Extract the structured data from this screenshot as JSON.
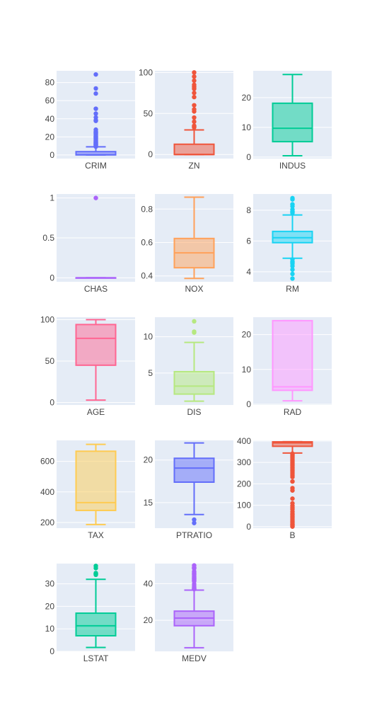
{
  "chart_data": {
    "type": "box",
    "layout": "grid 5 rows x 3 columns",
    "grid_lines": true,
    "legend": "none",
    "subplots": [
      {
        "name": "CRIM",
        "color": "#636EFA",
        "ylim": [
          -4,
          93
        ],
        "ticks": [
          0,
          20,
          40,
          60,
          80
        ],
        "min": 0.006,
        "q1": 0.08,
        "median": 0.26,
        "q3": 3.68,
        "upper_fence": 8.98,
        "outliers": [
          9.2,
          9.9,
          10.8,
          11.1,
          11.6,
          12.0,
          12.8,
          13.5,
          14.3,
          15.0,
          15.9,
          16.8,
          17.9,
          18.8,
          19.6,
          20.1,
          20.7,
          22.1,
          23.6,
          24.4,
          25.0,
          25.9,
          28.0,
          37.7,
          38.4,
          41.5,
          45.7,
          51.1,
          67.9,
          73.5,
          88.98
        ]
      },
      {
        "name": "ZN",
        "color": "#EF553B",
        "ylim": [
          -5,
          102
        ],
        "ticks": [
          0,
          50,
          100
        ],
        "min": 0,
        "q1": 0,
        "median": 0,
        "q3": 12.5,
        "upper_fence": 30,
        "outliers": [
          33,
          34,
          35,
          40,
          45,
          52.5,
          55,
          60,
          70,
          75,
          80,
          82.5,
          85,
          90,
          95,
          100
        ]
      },
      {
        "name": "INDUS",
        "color": "#00CC96",
        "ylim": [
          -0.5,
          29
        ],
        "ticks": [
          0,
          10,
          20
        ],
        "min": 0.46,
        "q1": 5.19,
        "median": 9.69,
        "q3": 18.1,
        "upper_fence": 27.74,
        "outliers": []
      },
      {
        "name": "CHAS",
        "color": "#AB63FA",
        "ylim": [
          -0.05,
          1.05
        ],
        "ticks": [
          0,
          0.5,
          1
        ],
        "min": 0,
        "q1": 0,
        "median": 0,
        "q3": 0,
        "upper_fence": 0,
        "outliers": [
          1
        ]
      },
      {
        "name": "NOX",
        "color": "#FFA15A",
        "ylim": [
          0.365,
          0.89
        ],
        "ticks": [
          0.4,
          0.6,
          0.8
        ],
        "min": 0.385,
        "q1": 0.449,
        "median": 0.538,
        "q3": 0.624,
        "upper_fence": 0.871,
        "outliers": []
      },
      {
        "name": "RM",
        "color": "#19D3F3",
        "ylim": [
          3.35,
          9.05
        ],
        "ticks": [
          4,
          6,
          8
        ],
        "min": 4.88,
        "q1": 5.89,
        "median": 6.21,
        "q3": 6.62,
        "upper_fence": 7.69,
        "outliers": [
          3.56,
          3.86,
          4.14,
          4.37,
          4.52,
          4.63,
          4.65,
          4.8,
          7.82,
          7.88,
          7.93,
          8.04,
          8.25,
          8.38,
          8.7,
          8.78
        ]
      },
      {
        "name": "AGE",
        "color": "#FF6692",
        "ylim": [
          -3,
          103
        ],
        "ticks": [
          0,
          50,
          100
        ],
        "min": 2.9,
        "q1": 45,
        "median": 77.5,
        "q3": 94.1,
        "upper_fence": 100,
        "outliers": []
      },
      {
        "name": "DIS",
        "color": "#B6E880",
        "ylim": [
          0.6,
          12.7
        ],
        "ticks": [
          5,
          10
        ],
        "min": 1.13,
        "q1": 2.1,
        "median": 3.2,
        "q3": 5.19,
        "upper_fence": 9.22,
        "outliers": [
          10.58,
          10.71,
          12.13
        ]
      },
      {
        "name": "RAD",
        "color": "#FF97FF",
        "ylim": [
          -0.2,
          25
        ],
        "ticks": [
          0,
          10,
          20
        ],
        "min": 1,
        "q1": 4,
        "median": 5,
        "q3": 24,
        "upper_fence": 24,
        "outliers": []
      },
      {
        "name": "TAX",
        "color": "#FECB52",
        "ylim": [
          163,
          737
        ],
        "ticks": [
          200,
          400,
          600
        ],
        "min": 187,
        "q1": 279,
        "median": 330,
        "q3": 666,
        "upper_fence": 711,
        "outliers": []
      },
      {
        "name": "PTRATIO",
        "color": "#636EFA",
        "ylim": [
          12.0,
          22.3
        ],
        "ticks": [
          15,
          20
        ],
        "min": 13.6,
        "q1": 17.4,
        "median": 19.05,
        "q3": 20.2,
        "upper_fence": 22,
        "outliers": [
          12.6,
          13.0
        ]
      },
      {
        "name": "B",
        "color": "#EF553B",
        "ylim": [
          -7,
          403
        ],
        "ticks": [
          0,
          100,
          200,
          300,
          400
        ],
        "min": 344,
        "q1": 375.4,
        "median": 391.4,
        "q3": 396.2,
        "upper_fence": 396.9,
        "outliers": [
          0.32,
          3.5,
          7.7,
          10.5,
          16.5,
          22,
          27,
          35,
          43,
          48,
          55,
          60,
          70,
          81,
          88,
          97,
          109,
          131,
          169,
          180,
          211,
          232,
          240,
          248,
          255,
          262,
          270,
          277,
          285,
          292,
          300,
          307,
          315,
          323,
          330,
          336,
          341
        ]
      },
      {
        "name": "LSTAT",
        "color": "#00CC96",
        "ylim": [
          0,
          39
        ],
        "ticks": [
          0,
          10,
          20,
          30
        ],
        "min": 1.73,
        "q1": 6.93,
        "median": 11.36,
        "q3": 16.96,
        "upper_fence": 31.99,
        "outliers": [
          34.02,
          34.37,
          34.41,
          34.77,
          36.98,
          37.97
        ]
      },
      {
        "name": "MEDV",
        "color": "#AB63FA",
        "ylim": [
          3,
          51
        ],
        "ticks": [
          20,
          40
        ],
        "min": 5,
        "q1": 17.02,
        "median": 21.2,
        "q3": 25,
        "upper_fence": 36.5,
        "outliers": [
          37,
          37.2,
          37.6,
          37.9,
          38.7,
          39.8,
          41.3,
          41.7,
          42.3,
          42.8,
          43.1,
          43.5,
          44,
          44.8,
          45.4,
          46,
          46.7,
          48.3,
          48.5,
          48.8,
          50
        ]
      }
    ]
  }
}
